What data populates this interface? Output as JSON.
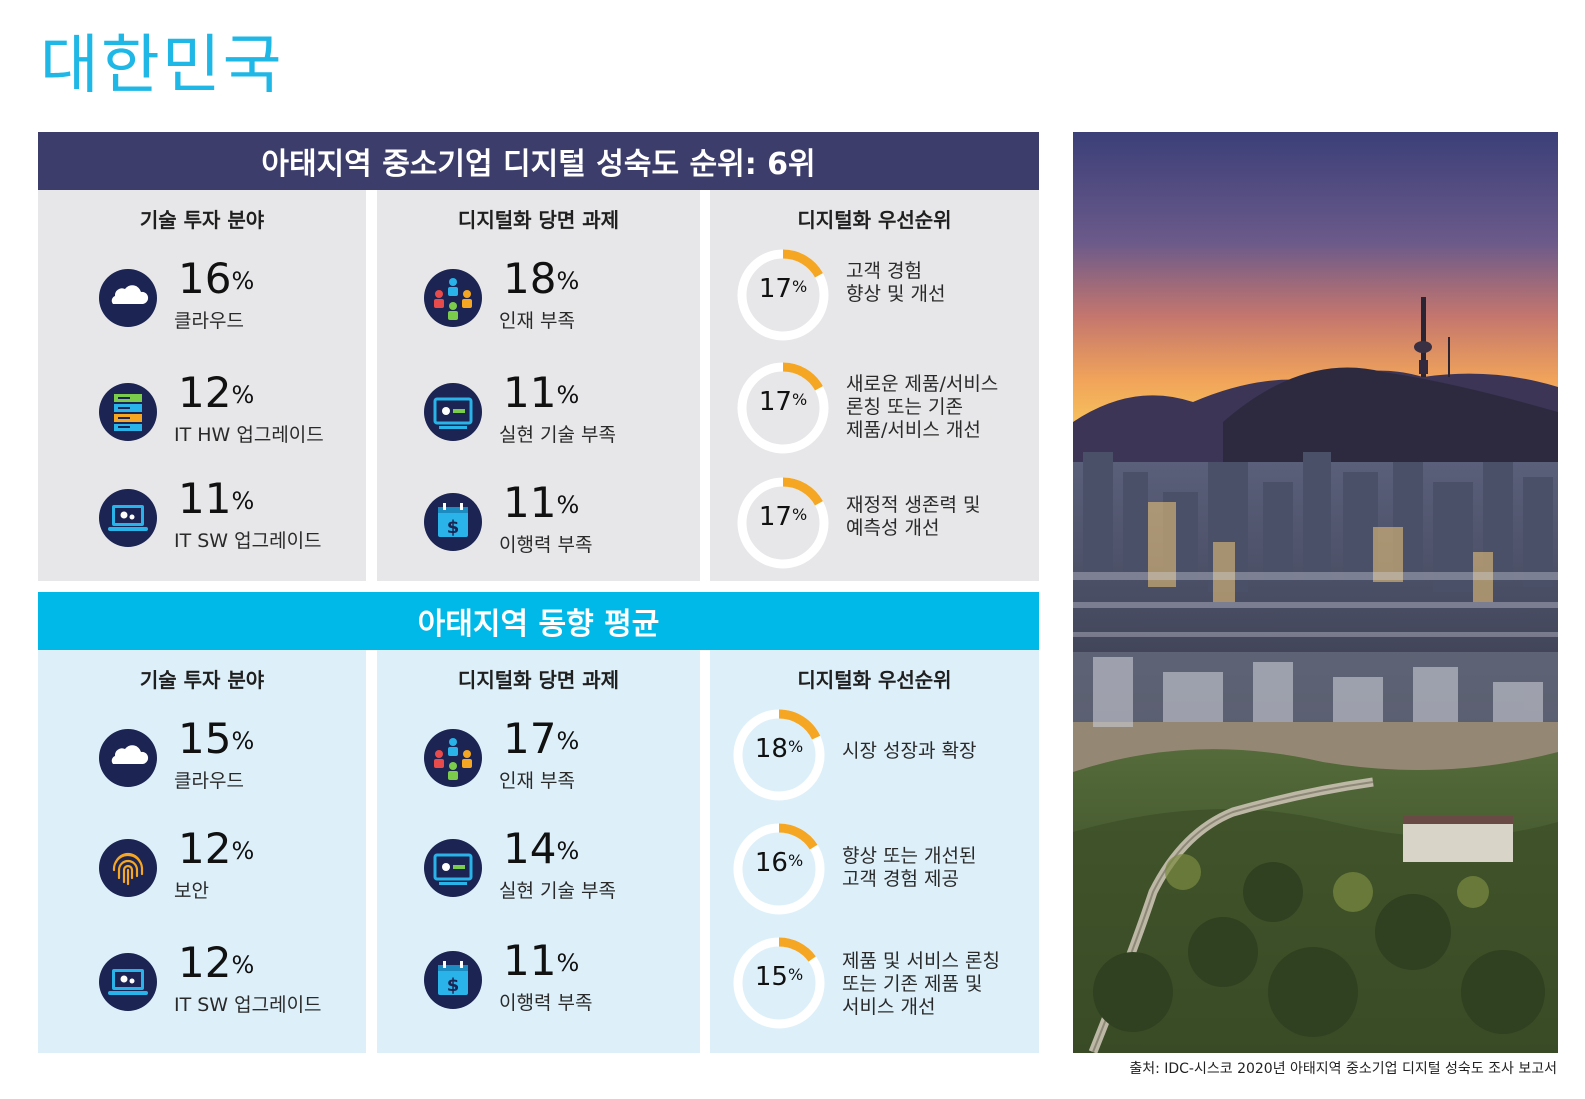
{
  "page_title": "대한민국",
  "korea": {
    "banner": "아태지역 중소기업 디지털 성숙도 순위: 6위",
    "tech_title": "기술 투자 분야",
    "challenge_title": "디지털화 당면 과제",
    "priority_title": "디지털화 우선순위",
    "tech": [
      {
        "icon": "cloud-icon",
        "value": "16",
        "label": "클라우드"
      },
      {
        "icon": "server-icon",
        "value": "12",
        "label": "IT HW 업그레이드"
      },
      {
        "icon": "laptop-gears-icon",
        "value": "11",
        "label": "IT SW 업그레이드"
      }
    ],
    "challenges": [
      {
        "icon": "people-network-icon",
        "value": "18",
        "label": "인재 부족"
      },
      {
        "icon": "screen-tools-icon",
        "value": "11",
        "label": "실현 기술 부족"
      },
      {
        "icon": "calendar-dollar-icon",
        "value": "11",
        "label": "이행력 부족"
      }
    ],
    "priorities": [
      {
        "value": 17,
        "line1": "고객 경험",
        "line2": "향상 및 개선",
        "line3": ""
      },
      {
        "value": 17,
        "line1": "새로운 제품/서비스",
        "line2": "론칭 또는 기존",
        "line3": "제품/서비스 개선"
      },
      {
        "value": 17,
        "line1": "재정적 생존력 및",
        "line2": "예측성 개선",
        "line3": ""
      }
    ]
  },
  "apac": {
    "banner": "아태지역 동향 평균",
    "tech_title": "기술 투자 분야",
    "challenge_title": "디지털화 당면 과제",
    "priority_title": "디지털화 우선순위",
    "tech": [
      {
        "icon": "cloud-icon",
        "value": "15",
        "label": "클라우드"
      },
      {
        "icon": "fingerprint-icon",
        "value": "12",
        "label": "보안"
      },
      {
        "icon": "laptop-gears-icon",
        "value": "12",
        "label": "IT SW 업그레이드"
      }
    ],
    "challenges": [
      {
        "icon": "people-network-icon",
        "value": "17",
        "label": "인재 부족"
      },
      {
        "icon": "screen-tools-icon",
        "value": "14",
        "label": "실현 기술 부족"
      },
      {
        "icon": "calendar-dollar-icon",
        "value": "11",
        "label": "이행력 부족"
      }
    ],
    "priorities": [
      {
        "value": 18,
        "line1": "시장 성장과 확장",
        "line2": "",
        "line3": ""
      },
      {
        "value": 16,
        "line1": "향상 또는 개선된",
        "line2": "고객 경험 제공",
        "line3": ""
      },
      {
        "value": 15,
        "line1": "제품 및 서비스 론칭",
        "line2": "또는 기존 제품 및",
        "line3": "서비스 개선"
      }
    ]
  },
  "percent_symbol": "%",
  "source": "출처: IDC-시스코 2020년 아태지역 중소기업 디지털 성숙도 조사 보고서",
  "colors": {
    "navy": "#3c3d6b",
    "cyan": "#00b9e8",
    "ring_accent": "#f5a623",
    "title": "#1fb8e6"
  }
}
